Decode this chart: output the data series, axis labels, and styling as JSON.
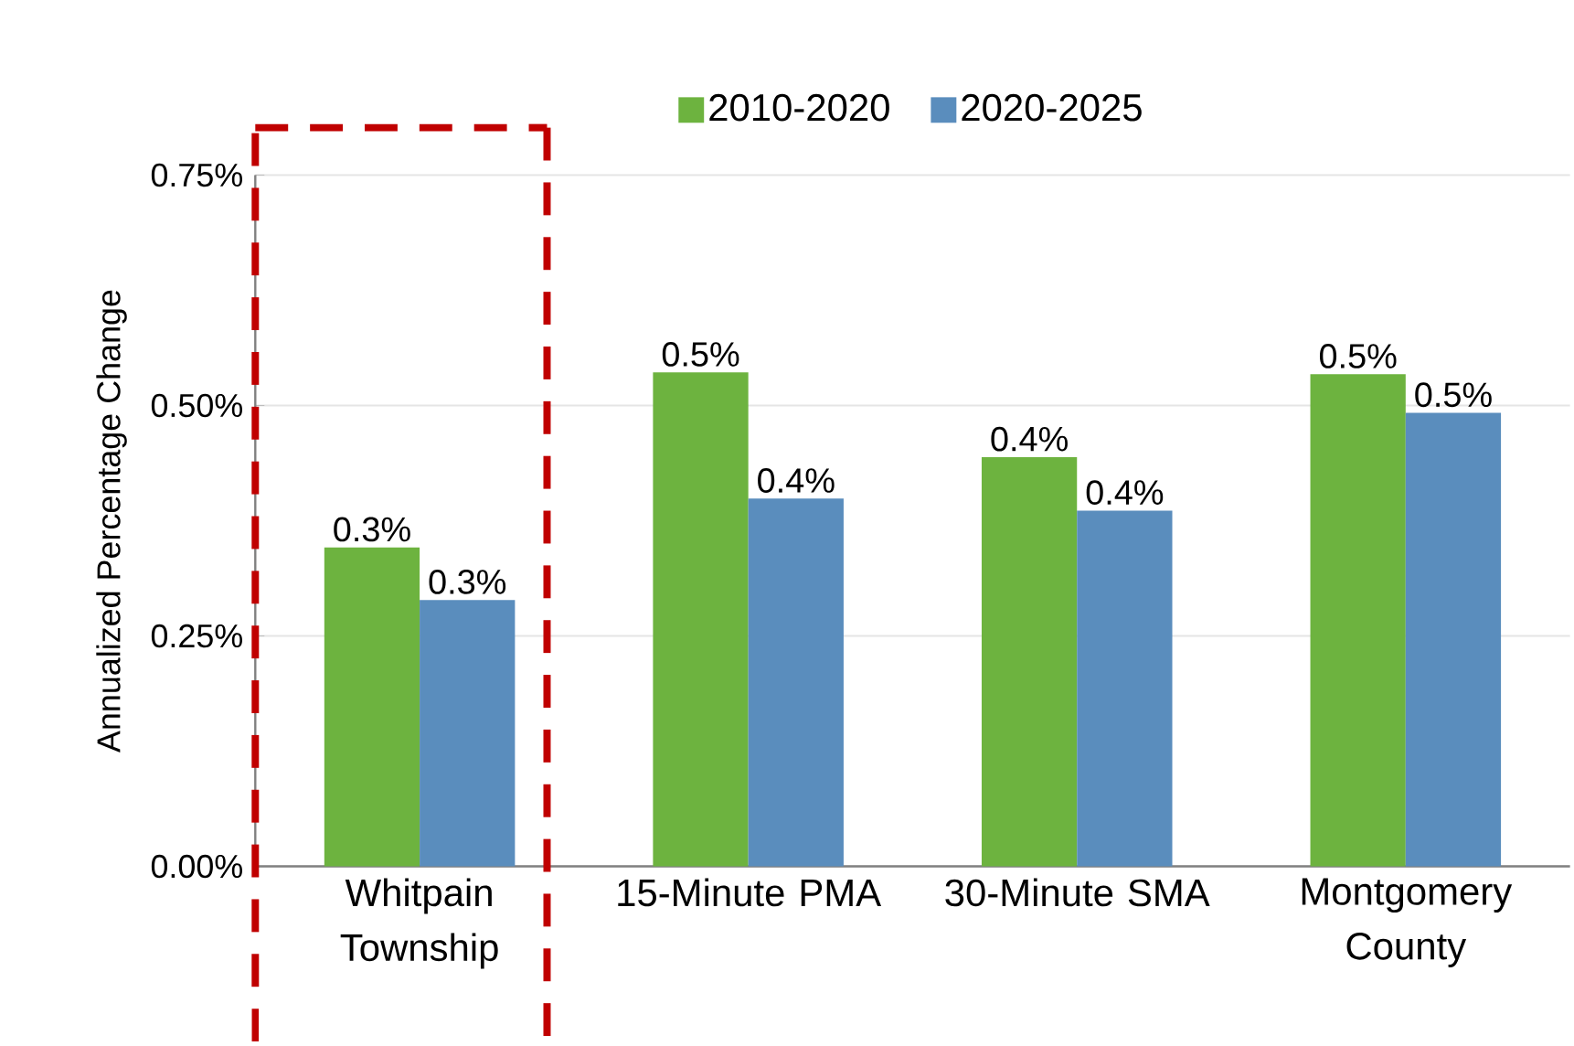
{
  "chart_data": {
    "type": "bar",
    "ylabel": "Annualized Percentage Change",
    "categories": [
      "Whitpain Township",
      "15-Minute PMA",
      "30-Minute SMA",
      "Montgomery County"
    ],
    "series": [
      {
        "name": "2010-2020",
        "color": "#6db33f",
        "values": [
          0.346,
          0.536,
          0.444,
          0.534
        ],
        "value_labels": [
          "0.3%",
          "0.5%",
          "0.4%",
          "0.5%"
        ]
      },
      {
        "name": "2020-2025",
        "color": "#5a8dbd",
        "values": [
          0.289,
          0.399,
          0.386,
          0.492
        ],
        "value_labels": [
          "0.3%",
          "0.4%",
          "0.4%",
          "0.5%"
        ]
      }
    ],
    "ylim": [
      0,
      0.75
    ],
    "yticks": [
      {
        "value": 0,
        "label": "0.00%"
      },
      {
        "value": 0.25,
        "label": "0.25%"
      },
      {
        "value": 0.5,
        "label": "0.50%"
      },
      {
        "value": 0.75,
        "label": "0.75%"
      }
    ],
    "grid": "y",
    "legend": "top"
  }
}
